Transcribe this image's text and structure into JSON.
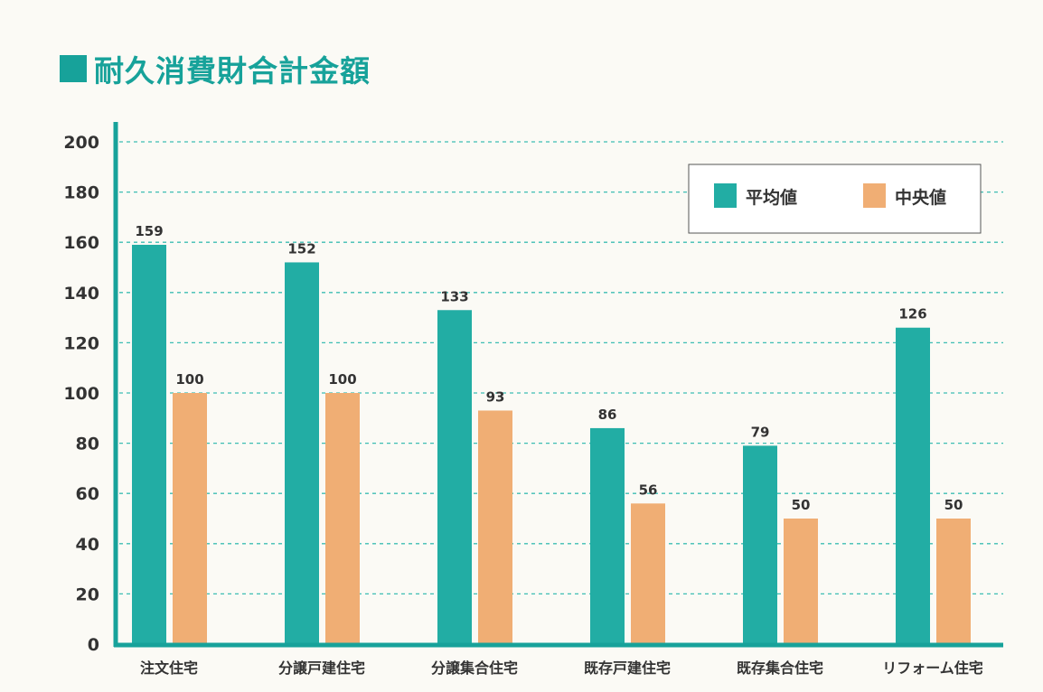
{
  "title": "耐久消費財合計金額",
  "colors": {
    "mean": "#22ADA4",
    "median": "#F0AE74",
    "axis": "#17A29A",
    "grid": "#3DBDB3",
    "text": "#333333"
  },
  "chart_data": {
    "type": "bar",
    "title": "耐久消費財合計金額",
    "xlabel": "",
    "ylabel": "",
    "ylim": [
      0,
      200
    ],
    "yticks": [
      0,
      20,
      40,
      60,
      80,
      100,
      120,
      140,
      160,
      180,
      200
    ],
    "grid": true,
    "legend_position": "top-right",
    "categories": [
      "注文住宅",
      "分譲戸建住宅",
      "分譲集合住宅",
      "既存戸建住宅",
      "既存集合住宅",
      "リフォーム住宅"
    ],
    "series": [
      {
        "name": "平均値",
        "values": [
          159,
          152,
          133,
          86,
          79,
          126
        ]
      },
      {
        "name": "中央値",
        "values": [
          100,
          100,
          93,
          56,
          50,
          50
        ]
      }
    ]
  }
}
